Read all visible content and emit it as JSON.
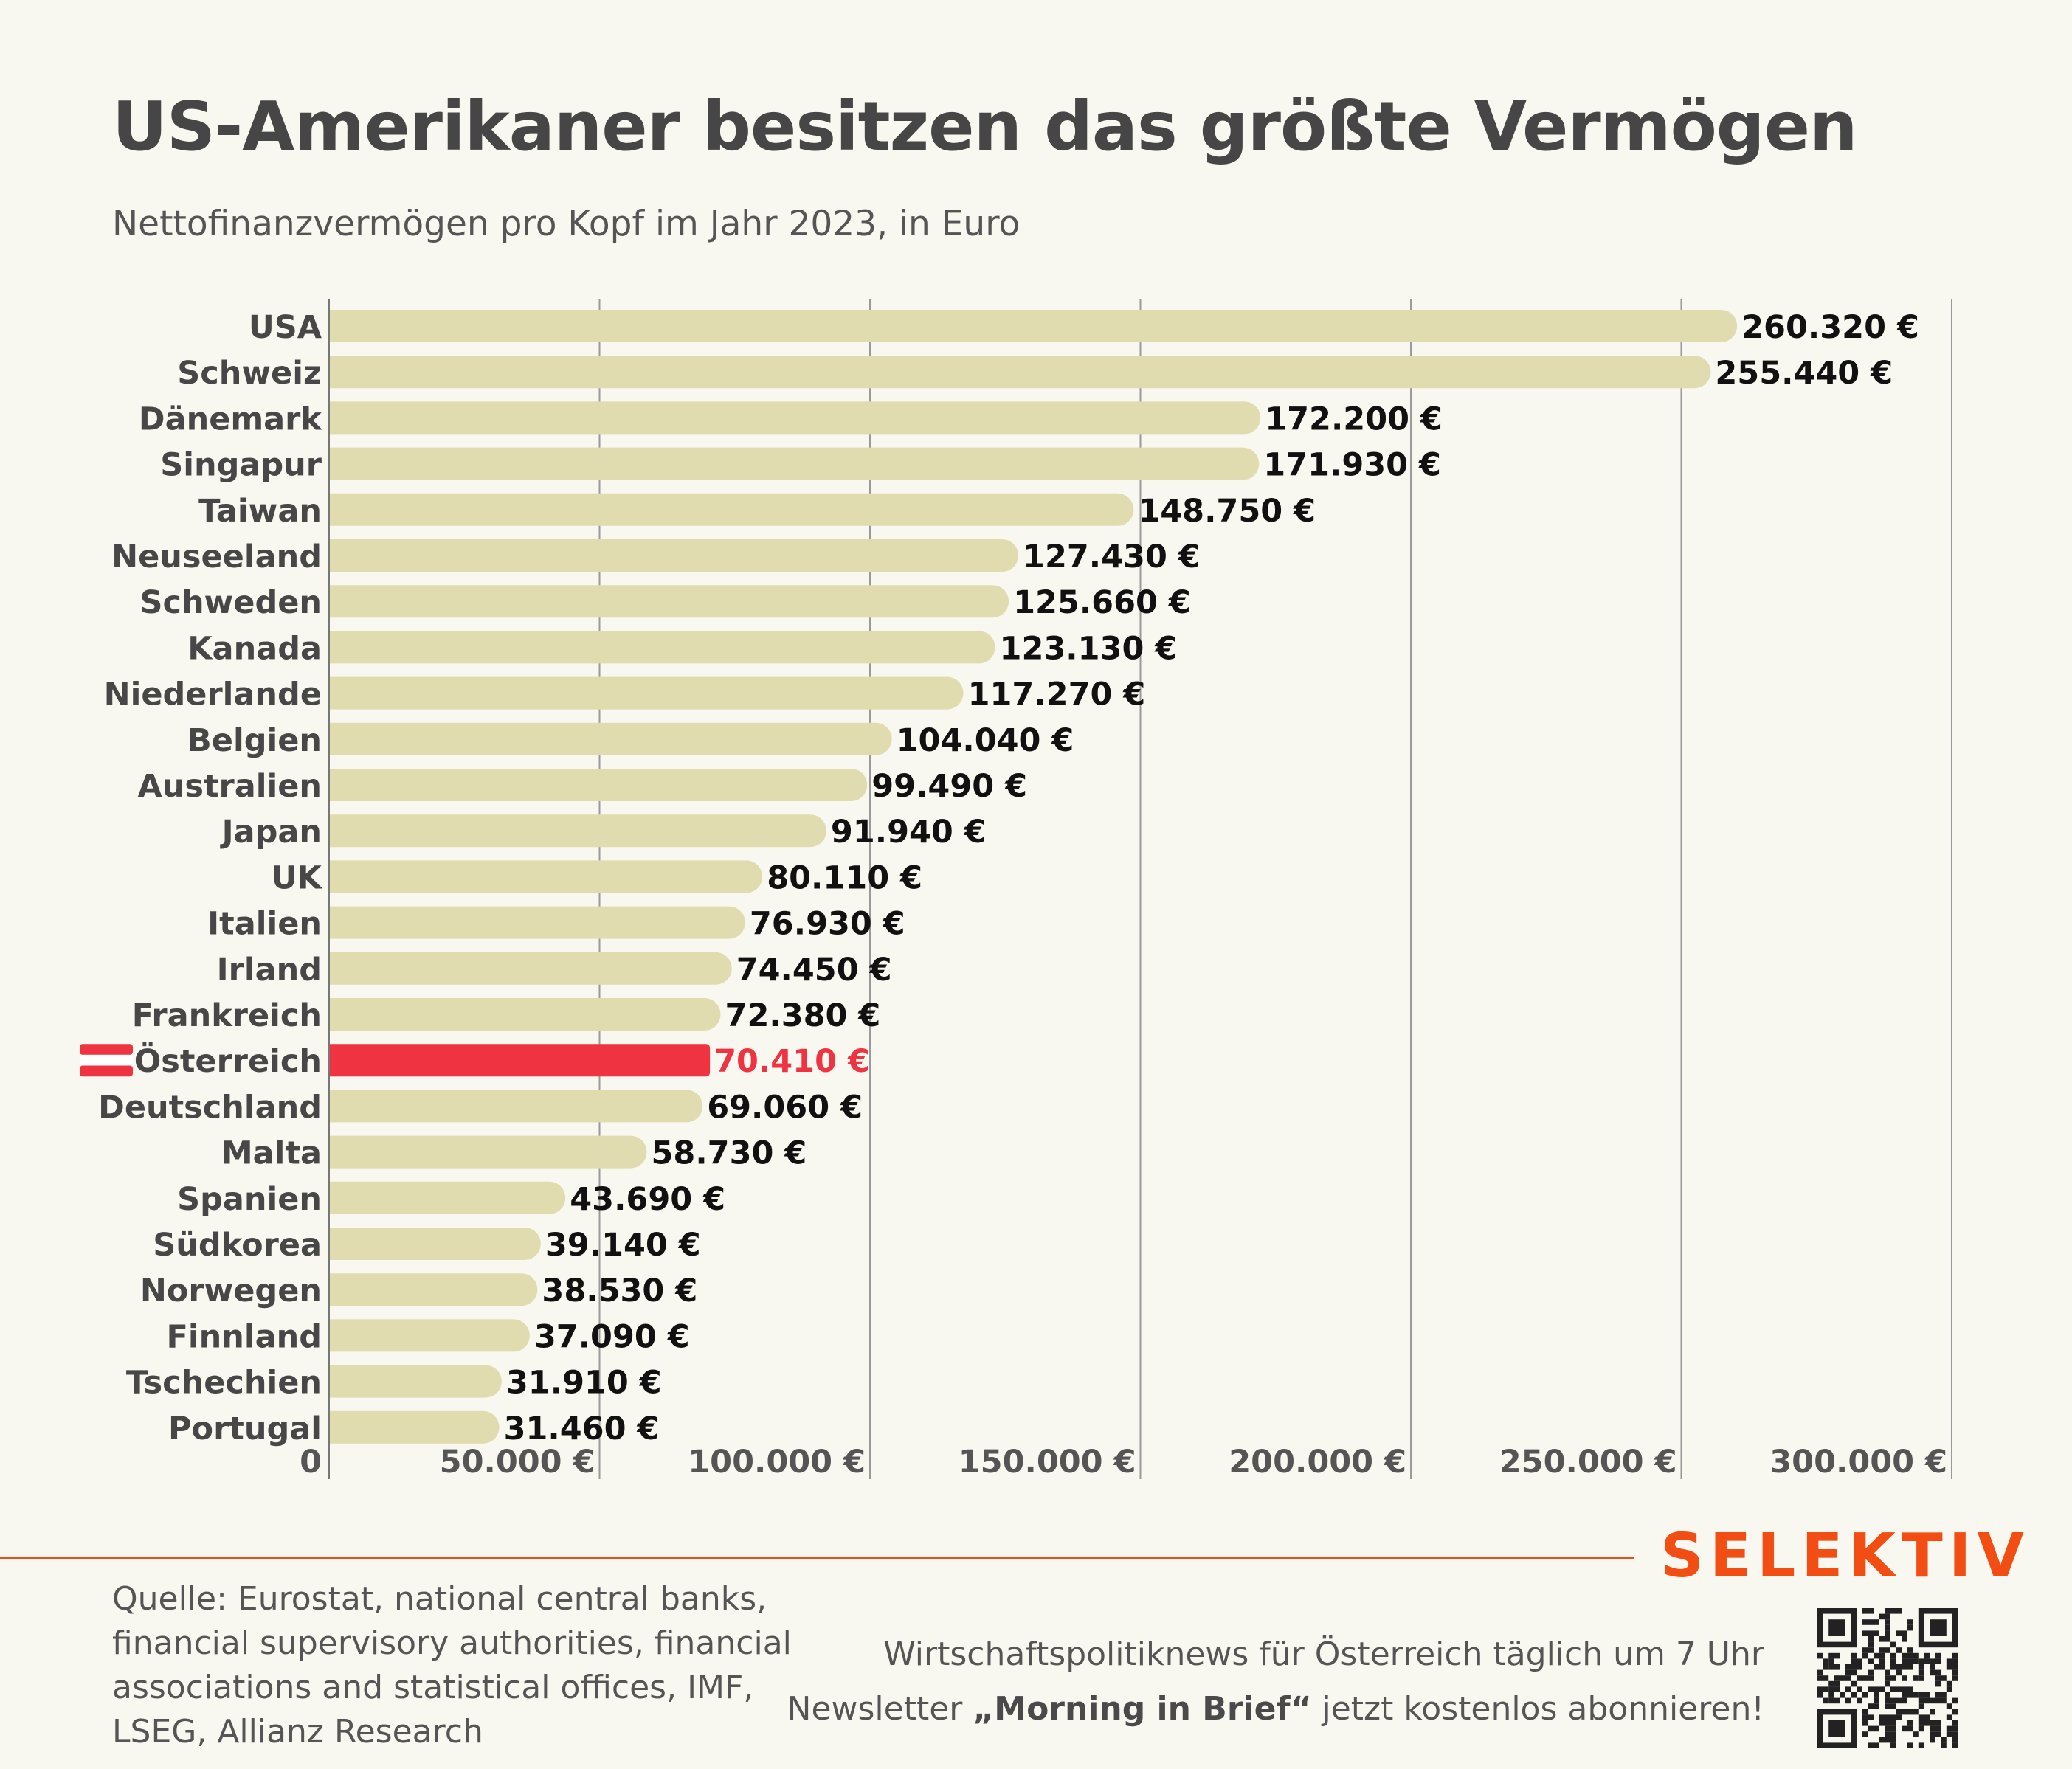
{
  "header": {
    "title": "US-Amerikaner besitzen das größte Vermögen",
    "subtitle": "Nettofinanzvermögen pro Kopf im Jahr 2023, in Euro"
  },
  "chart_data": {
    "type": "bar",
    "orientation": "horizontal",
    "title": "US-Amerikaner besitzen das größte Vermögen",
    "subtitle": "Nettofinanzvermögen pro Kopf im Jahr 2023, in Euro",
    "categories": [
      "USA",
      "Schweiz",
      "Dänemark",
      "Singapur",
      "Taiwan",
      "Neuseeland",
      "Schweden",
      "Kanada",
      "Niederlande",
      "Belgien",
      "Australien",
      "Japan",
      "UK",
      "Italien",
      "Irland",
      "Frankreich",
      "Österreich",
      "Deutschland",
      "Malta",
      "Spanien",
      "Südkorea",
      "Norwegen",
      "Finnland",
      "Tschechien",
      "Portugal"
    ],
    "values": [
      260320,
      255440,
      172200,
      171930,
      148750,
      127430,
      125660,
      123130,
      117270,
      104040,
      99490,
      91940,
      80110,
      76930,
      74450,
      72380,
      70410,
      69060,
      58730,
      43690,
      39140,
      38530,
      37090,
      31910,
      31460
    ],
    "value_labels": [
      "260.320 €",
      "255.440 €",
      "172.200 €",
      "171.930 €",
      "148.750 €",
      "127.430 €",
      "125.660 €",
      "123.130 €",
      "117.270 €",
      "104.040 €",
      "99.490 €",
      "91.940 €",
      "80.110 €",
      "76.930 €",
      "74.450 €",
      "72.380 €",
      "70.410 €",
      "69.060 €",
      "58.730 €",
      "43.690 €",
      "39.140 €",
      "38.530 €",
      "37.090 €",
      "31.910 €",
      "31.460 €"
    ],
    "highlight": "Österreich",
    "xlim": [
      0,
      300000
    ],
    "xticks": [
      0,
      50000,
      100000,
      150000,
      200000,
      250000,
      300000
    ],
    "xtick_labels": [
      "0",
      "50.000 €",
      "100.000 €",
      "150.000 €",
      "200.000 €",
      "250.000 €",
      "300.000 €"
    ],
    "grid": true,
    "colors": {
      "bar": "#e0dcb0",
      "highlight": "#ef3340",
      "label": "#111111",
      "category": "#474747",
      "grid": "#9a9a9a",
      "flag_red": "#ef3340",
      "flag_white": "#ffffff"
    }
  },
  "footer": {
    "brand": "SELEKTIV",
    "source": "Quelle: Eurostat, national central banks, financial supervisory authorities, financial associations and statistical offices, IMF, LSEG, Allianz Research",
    "promo_line1": "Wirtschaftspolitiknews für Österreich täglich um 7 Uhr",
    "promo_line2_pre": "Newsletter ",
    "promo_line2_bold": "„Morning in Brief“",
    "promo_line2_post": " jetzt kostenlos abonnieren!",
    "qr_icon": "qr-code-icon"
  }
}
